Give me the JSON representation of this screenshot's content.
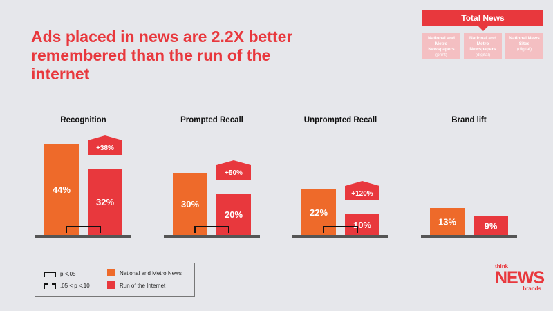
{
  "title": "Ads placed in news are 2.2X better remembered than the run of the internet",
  "total_news": {
    "header": "Total News",
    "boxes": [
      {
        "line1": "National and Metro Newspapers",
        "sub": "(print)"
      },
      {
        "line1": "National and Metro Newspapers",
        "sub": "(digital)"
      },
      {
        "line1": "National News Sites",
        "sub": "(digital)"
      }
    ]
  },
  "colors": {
    "news": "#ee6a2a",
    "internet": "#e8383d",
    "baseline": "#555555"
  },
  "chart_data": {
    "type": "bar",
    "categories": [
      "Recognition",
      "Prompted Recall",
      "Unprompted Recall",
      "Brand lift"
    ],
    "series": [
      {
        "name": "National and Metro News",
        "values": [
          44,
          30,
          22,
          13
        ],
        "labels": [
          "44%",
          "30%",
          "22%",
          "13%"
        ]
      },
      {
        "name": "Run of the Internet",
        "values": [
          32,
          20,
          10,
          9
        ],
        "labels": [
          "32%",
          "20%",
          "10%",
          "9%"
        ]
      }
    ],
    "lifts": [
      "+38%",
      "+50%",
      "+120%",
      ""
    ],
    "significance": [
      "p <.05",
      "p <.05",
      "p <.05",
      ""
    ],
    "ylim": [
      0,
      44
    ]
  },
  "legend": {
    "sig_solid": "p <.05",
    "sig_dashed": ".05 < p <.10",
    "series1": "National and Metro News",
    "series2": "Run of the Internet"
  },
  "logo": {
    "think": "think",
    "news": "NEWS",
    "brands": "brands"
  }
}
